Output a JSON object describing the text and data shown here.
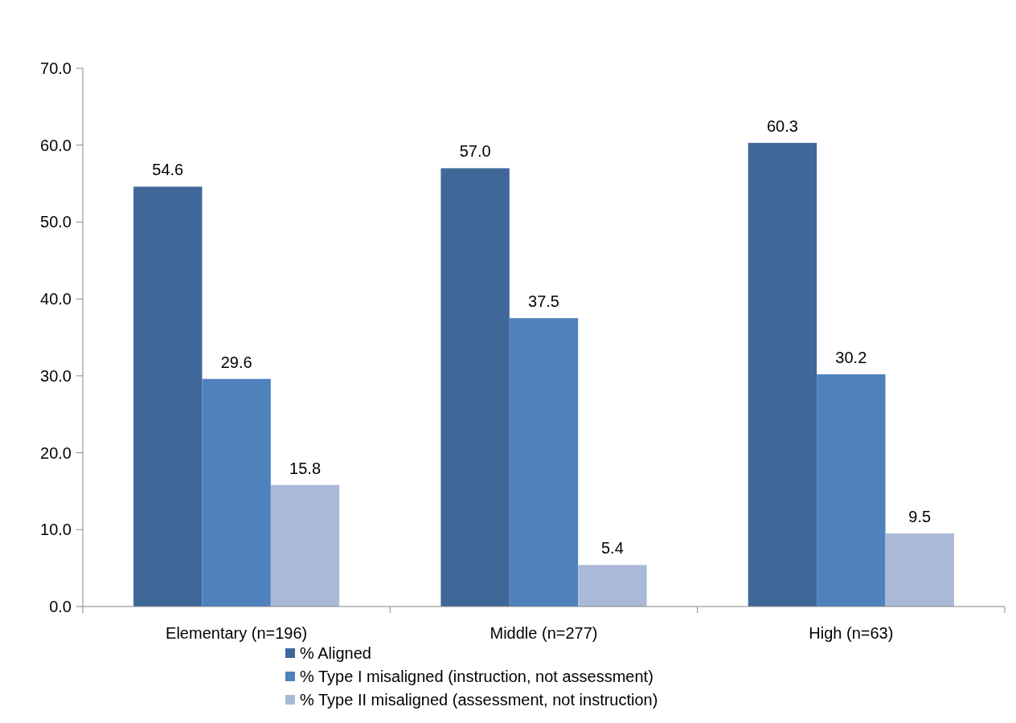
{
  "chart_data": {
    "type": "bar",
    "categories": [
      "Elementary (n=196)",
      "Middle (n=277)",
      "High (n=63)"
    ],
    "series": [
      {
        "name": "% Aligned",
        "color": "#3f6899",
        "values": [
          54.6,
          57.0,
          60.3
        ],
        "value_labels": [
          "54.6",
          "57.0",
          "60.3"
        ]
      },
      {
        "name": "% Type I misaligned (instruction, not assessment)",
        "color": "#4f81bd",
        "values": [
          29.6,
          37.5,
          30.2
        ],
        "value_labels": [
          "29.6",
          "37.5",
          "30.2"
        ]
      },
      {
        "name": "% Type II misaligned (assessment, not instruction)",
        "color": "#aab9d7",
        "values": [
          15.8,
          5.4,
          9.5
        ],
        "value_labels": [
          "15.8",
          "5.4",
          "9.5"
        ]
      }
    ],
    "ylim": [
      0,
      70
    ],
    "yticks": [
      {
        "value": 0,
        "label": "0.0"
      },
      {
        "value": 10,
        "label": "10.0"
      },
      {
        "value": 20,
        "label": "20.0"
      },
      {
        "value": 30,
        "label": "30.0"
      },
      {
        "value": 40,
        "label": "40.0"
      },
      {
        "value": 50,
        "label": "50.0"
      },
      {
        "value": 60,
        "label": "60.0"
      },
      {
        "value": 70,
        "label": "70.0"
      }
    ],
    "grid": false,
    "legend": "bottom"
  }
}
